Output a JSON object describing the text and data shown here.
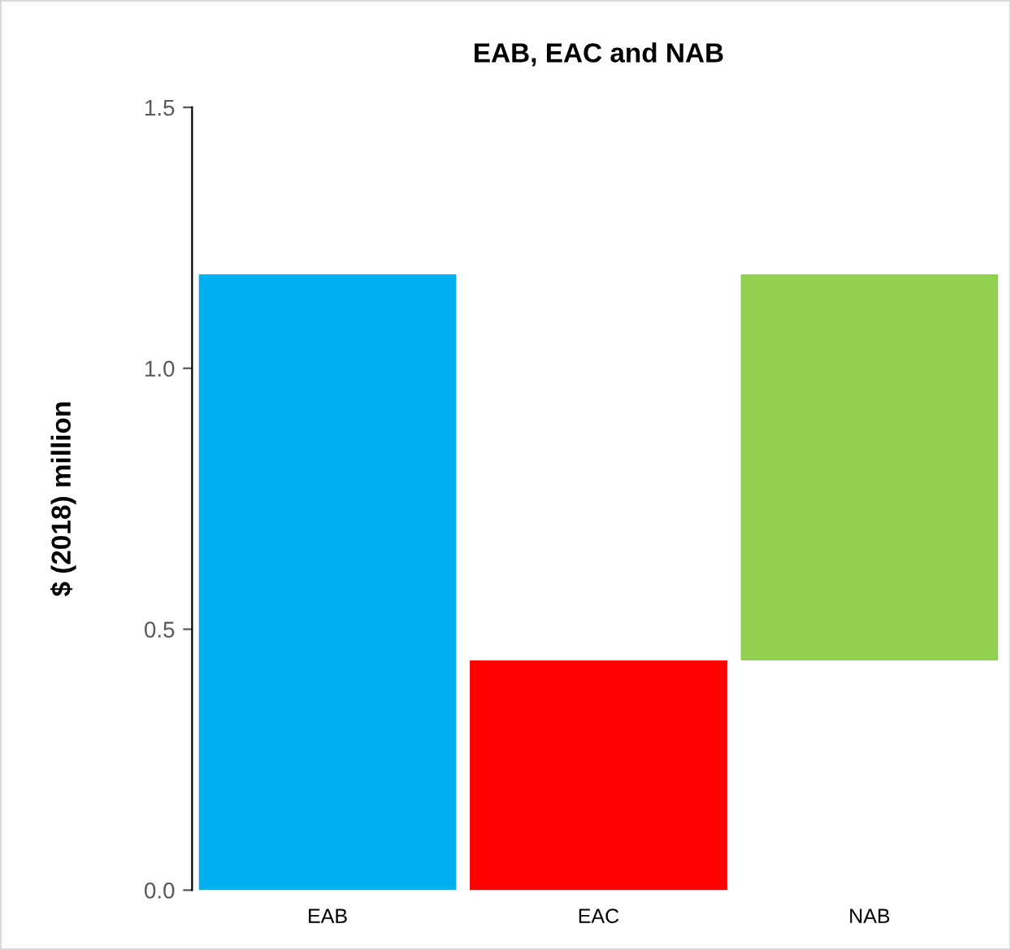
{
  "chart_data": {
    "type": "bar",
    "title": "EAB, EAC and NAB",
    "ylabel": "$ (2018) million",
    "categories": [
      "EAB",
      "EAC",
      "NAB"
    ],
    "values": [
      1.18,
      0.44,
      0.74
    ],
    "base": [
      0,
      0,
      0.44
    ],
    "colors": [
      "#00b0f0",
      "#ff0000",
      "#92d050"
    ],
    "ylim": [
      0,
      1.5
    ],
    "yticks": [
      {
        "value": 0,
        "label": "0.0"
      },
      {
        "value": 0.5,
        "label": "0.5"
      },
      {
        "value": 1.0,
        "label": "1.0"
      },
      {
        "value": 1.5,
        "label": "1.5"
      }
    ],
    "grid": false,
    "legend": false
  }
}
